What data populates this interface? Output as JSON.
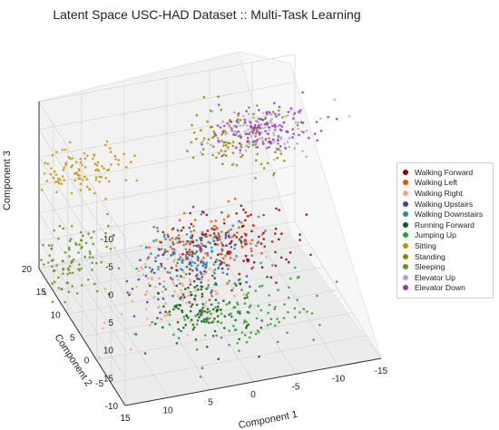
{
  "chart_data": {
    "type": "scatter",
    "title": "Latent Space USC-HAD Dataset :: Multi-Task Learning",
    "xlabel": "Component 1",
    "ylabel": "Component 2",
    "zlabel": "Component 3",
    "x_ticks": [
      "-15",
      "-10",
      "-5",
      "0",
      "5",
      "10",
      "15"
    ],
    "y_ticks": [
      "-10",
      "-5",
      "0",
      "5",
      "10",
      "15",
      "20"
    ],
    "z_ticks": [
      "-10",
      "-5",
      "0",
      "5",
      "10",
      "15"
    ],
    "grid": true,
    "legend_position": "right",
    "series": [
      {
        "name": "Walking Forward",
        "color": "#8b0000",
        "center": [
          -2,
          5,
          8
        ],
        "spread": [
          4,
          3,
          2
        ]
      },
      {
        "name": "Walking Left",
        "color": "#ff4500",
        "center": [
          0,
          4,
          6
        ],
        "spread": [
          3,
          2,
          2
        ]
      },
      {
        "name": "Walking Right",
        "color": "#f4a582",
        "center": [
          4,
          3,
          12
        ],
        "spread": [
          4,
          3,
          3
        ]
      },
      {
        "name": "Walking Upstairs",
        "color": "#3f3f9f",
        "center": [
          2,
          4,
          10
        ],
        "spread": [
          4,
          3,
          3
        ]
      },
      {
        "name": "Walking Downstairs",
        "color": "#1f8fa0",
        "center": [
          1,
          5,
          9
        ],
        "spread": [
          3,
          2,
          2
        ]
      },
      {
        "name": "Running Forward",
        "color": "#0b5d0b",
        "center": [
          4,
          -3,
          12
        ],
        "spread": [
          3,
          3,
          2
        ]
      },
      {
        "name": "Jumping Up",
        "color": "#2ca02c",
        "center": [
          -1,
          -3,
          14
        ],
        "spread": [
          4,
          3,
          2
        ]
      },
      {
        "name": "Sitting",
        "color": "#c8900a",
        "center": [
          12,
          14,
          -2
        ],
        "spread": [
          4,
          2,
          1
        ]
      },
      {
        "name": "Standing",
        "color": "#8a8a00",
        "center": [
          -6,
          12,
          -4
        ],
        "spread": [
          3,
          3,
          1
        ]
      },
      {
        "name": "Sleeping",
        "color": "#6a8e23",
        "center": [
          15,
          12,
          12
        ],
        "spread": [
          3,
          2,
          3
        ]
      },
      {
        "name": "Elevator Up",
        "color": "#a9a9c9",
        "center": [
          -8,
          10,
          -6
        ],
        "spread": [
          3,
          2,
          1
        ]
      },
      {
        "name": "Elevator Down",
        "color": "#9b30d0",
        "center": [
          -8,
          10,
          -7
        ],
        "spread": [
          3,
          2,
          1
        ]
      }
    ]
  }
}
